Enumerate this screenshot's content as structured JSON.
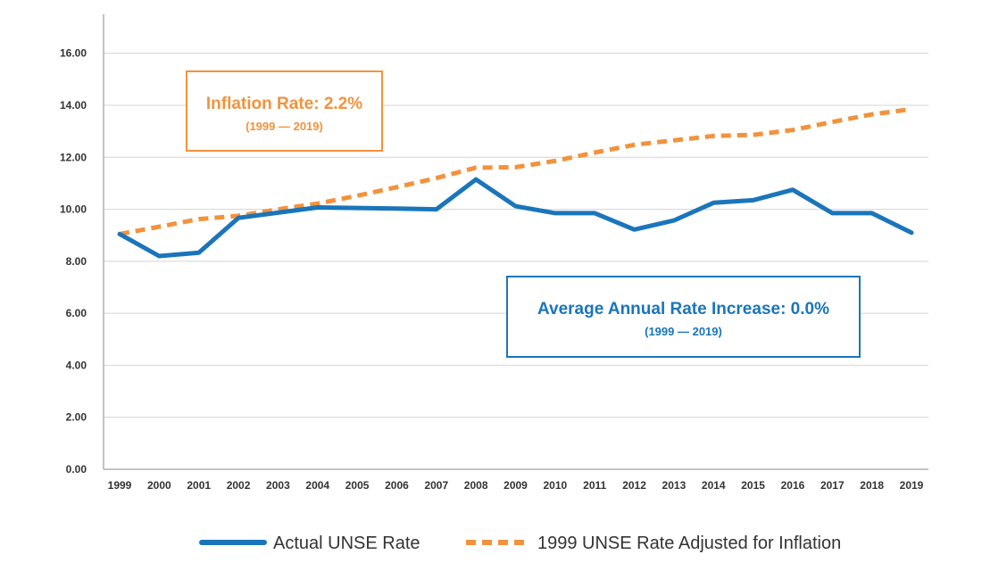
{
  "chart_data": {
    "type": "line",
    "title": "",
    "xlabel": "",
    "ylabel": "",
    "categories": [
      "1999",
      "2000",
      "2001",
      "2002",
      "2003",
      "2004",
      "2005",
      "2006",
      "2007",
      "2008",
      "2009",
      "2010",
      "2011",
      "2012",
      "2013",
      "2014",
      "2015",
      "2016",
      "2017",
      "2018",
      "2019"
    ],
    "ylim": [
      0,
      17.5
    ],
    "yticks": [
      "0.00",
      "2.00",
      "4.00",
      "6.00",
      "8.00",
      "10.00",
      "12.00",
      "14.00",
      "16.00"
    ],
    "grid": true,
    "legend_position": "bottom-center",
    "series": [
      {
        "name": "Actual UNSE Rate",
        "style": "solid",
        "color": "#1a75bb",
        "values": [
          9.05,
          8.2,
          8.33,
          9.67,
          9.87,
          10.07,
          10.05,
          10.03,
          10.0,
          11.15,
          10.12,
          9.85,
          9.85,
          9.22,
          9.57,
          10.25,
          10.35,
          10.75,
          9.85,
          9.85,
          9.1
        ]
      },
      {
        "name": "1999 UNSE Rate Adjusted for Inflation",
        "style": "dashed",
        "color": "#f3923c",
        "values": [
          9.05,
          9.33,
          9.62,
          9.75,
          10.0,
          10.22,
          10.52,
          10.85,
          11.2,
          11.6,
          11.62,
          11.86,
          12.18,
          12.48,
          12.65,
          12.82,
          12.86,
          13.05,
          13.36,
          13.65,
          13.85
        ]
      }
    ],
    "annotations": [
      {
        "id": "inflation",
        "title": "Inflation Rate: 2.2%",
        "subtitle": "(1999 — 2019)",
        "color": "#f3923c"
      },
      {
        "id": "average",
        "title": "Average Annual Rate Increase: 0.0%",
        "subtitle": "(1999 — 2019)",
        "color": "#1a75bb"
      }
    ]
  }
}
